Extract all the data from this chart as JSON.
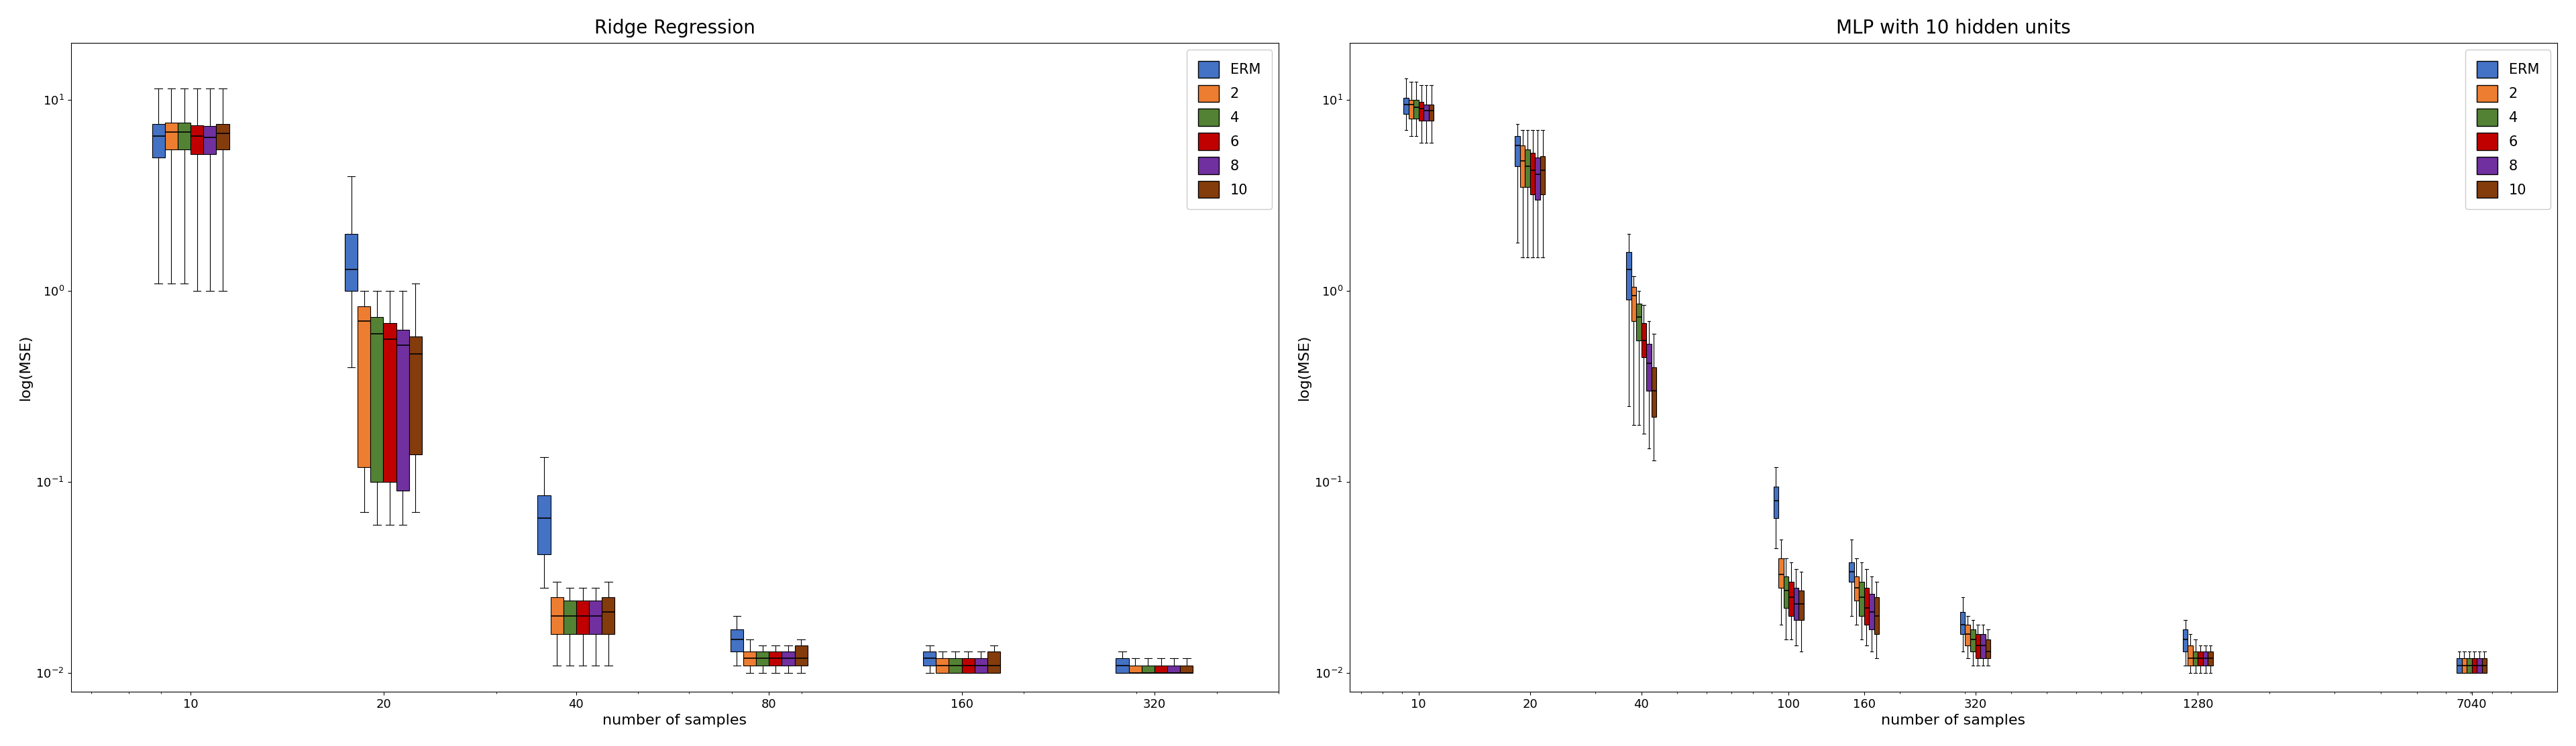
{
  "ridge": {
    "title": "Ridge Regression",
    "xlabel": "number of samples",
    "ylabel": "log(MSE)",
    "x_ticks": [
      10,
      20,
      40,
      80,
      160,
      320
    ],
    "x_labels": [
      "10",
      "20",
      "40",
      "80",
      "160",
      "320"
    ],
    "series": {
      "ERM": {
        "color": "#4472c4",
        "label": "ERM",
        "boxes": [
          {
            "q1": 5.0,
            "med": 6.5,
            "q3": 7.5,
            "whislo": 1.1,
            "whishi": 11.5
          },
          {
            "q1": 1.0,
            "med": 1.3,
            "q3": 2.0,
            "whislo": 0.4,
            "whishi": 4.0
          },
          {
            "q1": 0.042,
            "med": 0.065,
            "q3": 0.085,
            "whislo": 0.028,
            "whishi": 0.135
          },
          {
            "q1": 0.013,
            "med": 0.015,
            "q3": 0.017,
            "whislo": 0.011,
            "whishi": 0.02
          },
          {
            "q1": 0.011,
            "med": 0.012,
            "q3": 0.013,
            "whislo": 0.01,
            "whishi": 0.014
          },
          {
            "q1": 0.01,
            "med": 0.011,
            "q3": 0.012,
            "whislo": 0.01,
            "whishi": 0.013
          }
        ]
      },
      "2": {
        "color": "#ed7d31",
        "label": "2",
        "boxes": [
          {
            "q1": 5.5,
            "med": 6.8,
            "q3": 7.6,
            "whislo": 1.1,
            "whishi": 11.5
          },
          {
            "q1": 0.12,
            "med": 0.7,
            "q3": 0.83,
            "whislo": 0.07,
            "whishi": 1.0
          },
          {
            "q1": 0.016,
            "med": 0.02,
            "q3": 0.025,
            "whislo": 0.011,
            "whishi": 0.03
          },
          {
            "q1": 0.011,
            "med": 0.012,
            "q3": 0.013,
            "whislo": 0.01,
            "whishi": 0.015
          },
          {
            "q1": 0.01,
            "med": 0.011,
            "q3": 0.012,
            "whislo": 0.01,
            "whishi": 0.013
          },
          {
            "q1": 0.01,
            "med": 0.01,
            "q3": 0.011,
            "whislo": 0.01,
            "whishi": 0.012
          }
        ]
      },
      "4": {
        "color": "#548235",
        "label": "4",
        "boxes": [
          {
            "q1": 5.5,
            "med": 6.8,
            "q3": 7.6,
            "whislo": 1.1,
            "whishi": 11.5
          },
          {
            "q1": 0.1,
            "med": 0.6,
            "q3": 0.73,
            "whislo": 0.06,
            "whishi": 1.0
          },
          {
            "q1": 0.016,
            "med": 0.02,
            "q3": 0.024,
            "whislo": 0.011,
            "whishi": 0.028
          },
          {
            "q1": 0.011,
            "med": 0.012,
            "q3": 0.013,
            "whislo": 0.01,
            "whishi": 0.014
          },
          {
            "q1": 0.01,
            "med": 0.011,
            "q3": 0.012,
            "whislo": 0.01,
            "whishi": 0.013
          },
          {
            "q1": 0.01,
            "med": 0.01,
            "q3": 0.011,
            "whislo": 0.01,
            "whishi": 0.012
          }
        ]
      },
      "6": {
        "color": "#c00000",
        "label": "6",
        "boxes": [
          {
            "q1": 5.2,
            "med": 6.5,
            "q3": 7.4,
            "whislo": 1.0,
            "whishi": 11.5
          },
          {
            "q1": 0.1,
            "med": 0.56,
            "q3": 0.68,
            "whislo": 0.06,
            "whishi": 1.0
          },
          {
            "q1": 0.016,
            "med": 0.02,
            "q3": 0.024,
            "whislo": 0.011,
            "whishi": 0.028
          },
          {
            "q1": 0.011,
            "med": 0.012,
            "q3": 0.013,
            "whislo": 0.01,
            "whishi": 0.014
          },
          {
            "q1": 0.01,
            "med": 0.011,
            "q3": 0.012,
            "whislo": 0.01,
            "whishi": 0.013
          },
          {
            "q1": 0.01,
            "med": 0.01,
            "q3": 0.011,
            "whislo": 0.01,
            "whishi": 0.012
          }
        ]
      },
      "8": {
        "color": "#7030a0",
        "label": "8",
        "boxes": [
          {
            "q1": 5.2,
            "med": 6.4,
            "q3": 7.3,
            "whislo": 1.0,
            "whishi": 11.5
          },
          {
            "q1": 0.09,
            "med": 0.52,
            "q3": 0.63,
            "whislo": 0.06,
            "whishi": 1.0
          },
          {
            "q1": 0.016,
            "med": 0.02,
            "q3": 0.024,
            "whislo": 0.011,
            "whishi": 0.028
          },
          {
            "q1": 0.011,
            "med": 0.012,
            "q3": 0.013,
            "whislo": 0.01,
            "whishi": 0.014
          },
          {
            "q1": 0.01,
            "med": 0.011,
            "q3": 0.012,
            "whislo": 0.01,
            "whishi": 0.013
          },
          {
            "q1": 0.01,
            "med": 0.01,
            "q3": 0.011,
            "whislo": 0.01,
            "whishi": 0.012
          }
        ]
      },
      "10": {
        "color": "#843c0c",
        "label": "10",
        "boxes": [
          {
            "q1": 5.5,
            "med": 6.7,
            "q3": 7.5,
            "whislo": 1.0,
            "whishi": 11.5
          },
          {
            "q1": 0.14,
            "med": 0.47,
            "q3": 0.58,
            "whislo": 0.07,
            "whishi": 1.1
          },
          {
            "q1": 0.016,
            "med": 0.021,
            "q3": 0.025,
            "whislo": 0.011,
            "whishi": 0.03
          },
          {
            "q1": 0.011,
            "med": 0.012,
            "q3": 0.014,
            "whislo": 0.01,
            "whishi": 0.015
          },
          {
            "q1": 0.01,
            "med": 0.011,
            "q3": 0.013,
            "whislo": 0.01,
            "whishi": 0.014
          },
          {
            "q1": 0.01,
            "med": 0.01,
            "q3": 0.011,
            "whislo": 0.01,
            "whishi": 0.012
          }
        ]
      }
    }
  },
  "mlp": {
    "title": "MLP with 10 hidden units",
    "xlabel": "number of samples",
    "ylabel": "log(MSE)",
    "x_ticks": [
      10,
      20,
      40,
      100,
      160,
      320,
      1280,
      7040
    ],
    "x_labels": [
      "10",
      "20",
      "40",
      "100",
      "160",
      "320",
      "1280",
      "7040"
    ],
    "series": {
      "ERM": {
        "color": "#4472c4",
        "label": "ERM",
        "boxes": [
          {
            "q1": 8.5,
            "med": 9.5,
            "q3": 10.3,
            "whislo": 7.0,
            "whishi": 13.0
          },
          {
            "q1": 4.5,
            "med": 5.8,
            "q3": 6.5,
            "whislo": 1.8,
            "whishi": 7.5
          },
          {
            "q1": 0.9,
            "med": 1.3,
            "q3": 1.6,
            "whislo": 0.25,
            "whishi": 2.0
          },
          {
            "q1": 0.065,
            "med": 0.08,
            "q3": 0.095,
            "whislo": 0.045,
            "whishi": 0.12
          },
          {
            "q1": 0.03,
            "med": 0.034,
            "q3": 0.038,
            "whislo": 0.02,
            "whishi": 0.05
          },
          {
            "q1": 0.016,
            "med": 0.018,
            "q3": 0.021,
            "whislo": 0.013,
            "whishi": 0.025
          },
          {
            "q1": 0.013,
            "med": 0.015,
            "q3": 0.017,
            "whislo": 0.011,
            "whishi": 0.019
          },
          {
            "q1": 0.01,
            "med": 0.011,
            "q3": 0.012,
            "whislo": 0.01,
            "whishi": 0.013
          }
        ]
      },
      "2": {
        "color": "#ed7d31",
        "label": "2",
        "boxes": [
          {
            "q1": 8.0,
            "med": 9.5,
            "q3": 10.0,
            "whislo": 6.5,
            "whishi": 12.5
          },
          {
            "q1": 3.5,
            "med": 4.8,
            "q3": 5.8,
            "whislo": 1.5,
            "whishi": 7.0
          },
          {
            "q1": 0.7,
            "med": 0.95,
            "q3": 1.05,
            "whislo": 0.2,
            "whishi": 1.2
          },
          {
            "q1": 0.028,
            "med": 0.033,
            "q3": 0.04,
            "whislo": 0.018,
            "whishi": 0.05
          },
          {
            "q1": 0.024,
            "med": 0.028,
            "q3": 0.032,
            "whislo": 0.018,
            "whishi": 0.04
          },
          {
            "q1": 0.014,
            "med": 0.016,
            "q3": 0.018,
            "whislo": 0.012,
            "whishi": 0.02
          },
          {
            "q1": 0.011,
            "med": 0.012,
            "q3": 0.014,
            "whislo": 0.01,
            "whishi": 0.016
          },
          {
            "q1": 0.01,
            "med": 0.011,
            "q3": 0.012,
            "whislo": 0.01,
            "whishi": 0.013
          }
        ]
      },
      "4": {
        "color": "#548235",
        "label": "4",
        "boxes": [
          {
            "q1": 8.0,
            "med": 9.2,
            "q3": 10.0,
            "whislo": 6.5,
            "whishi": 12.5
          },
          {
            "q1": 3.5,
            "med": 4.5,
            "q3": 5.5,
            "whislo": 1.5,
            "whishi": 7.0
          },
          {
            "q1": 0.55,
            "med": 0.73,
            "q3": 0.86,
            "whislo": 0.2,
            "whishi": 1.0
          },
          {
            "q1": 0.022,
            "med": 0.027,
            "q3": 0.032,
            "whislo": 0.015,
            "whishi": 0.04
          },
          {
            "q1": 0.02,
            "med": 0.025,
            "q3": 0.03,
            "whislo": 0.015,
            "whishi": 0.038
          },
          {
            "q1": 0.013,
            "med": 0.015,
            "q3": 0.017,
            "whislo": 0.011,
            "whishi": 0.019
          },
          {
            "q1": 0.011,
            "med": 0.012,
            "q3": 0.013,
            "whislo": 0.01,
            "whishi": 0.015
          },
          {
            "q1": 0.01,
            "med": 0.011,
            "q3": 0.012,
            "whislo": 0.01,
            "whishi": 0.013
          }
        ]
      },
      "6": {
        "color": "#c00000",
        "label": "6",
        "boxes": [
          {
            "q1": 7.8,
            "med": 9.0,
            "q3": 9.8,
            "whislo": 6.0,
            "whishi": 12.0
          },
          {
            "q1": 3.2,
            "med": 4.3,
            "q3": 5.3,
            "whislo": 1.5,
            "whishi": 7.0
          },
          {
            "q1": 0.45,
            "med": 0.55,
            "q3": 0.68,
            "whislo": 0.18,
            "whishi": 0.85
          },
          {
            "q1": 0.02,
            "med": 0.025,
            "q3": 0.03,
            "whislo": 0.015,
            "whishi": 0.038
          },
          {
            "q1": 0.018,
            "med": 0.022,
            "q3": 0.028,
            "whislo": 0.014,
            "whishi": 0.035
          },
          {
            "q1": 0.012,
            "med": 0.014,
            "q3": 0.016,
            "whislo": 0.011,
            "whishi": 0.018
          },
          {
            "q1": 0.011,
            "med": 0.012,
            "q3": 0.013,
            "whislo": 0.01,
            "whishi": 0.014
          },
          {
            "q1": 0.01,
            "med": 0.011,
            "q3": 0.012,
            "whislo": 0.01,
            "whishi": 0.013
          }
        ]
      },
      "8": {
        "color": "#7030a0",
        "label": "8",
        "boxes": [
          {
            "q1": 7.8,
            "med": 8.8,
            "q3": 9.5,
            "whislo": 6.0,
            "whishi": 12.0
          },
          {
            "q1": 3.0,
            "med": 4.1,
            "q3": 5.0,
            "whislo": 1.5,
            "whishi": 7.0
          },
          {
            "q1": 0.3,
            "med": 0.42,
            "q3": 0.53,
            "whislo": 0.15,
            "whishi": 0.7
          },
          {
            "q1": 0.019,
            "med": 0.023,
            "q3": 0.028,
            "whislo": 0.014,
            "whishi": 0.035
          },
          {
            "q1": 0.017,
            "med": 0.021,
            "q3": 0.026,
            "whislo": 0.013,
            "whishi": 0.032
          },
          {
            "q1": 0.012,
            "med": 0.014,
            "q3": 0.016,
            "whislo": 0.011,
            "whishi": 0.018
          },
          {
            "q1": 0.011,
            "med": 0.012,
            "q3": 0.013,
            "whislo": 0.01,
            "whishi": 0.014
          },
          {
            "q1": 0.01,
            "med": 0.011,
            "q3": 0.012,
            "whislo": 0.01,
            "whishi": 0.013
          }
        ]
      },
      "10": {
        "color": "#843c0c",
        "label": "10",
        "boxes": [
          {
            "q1": 7.8,
            "med": 8.8,
            "q3": 9.5,
            "whislo": 6.0,
            "whishi": 12.0
          },
          {
            "q1": 3.2,
            "med": 4.3,
            "q3": 5.1,
            "whislo": 1.5,
            "whishi": 7.0
          },
          {
            "q1": 0.22,
            "med": 0.3,
            "q3": 0.4,
            "whislo": 0.13,
            "whishi": 0.6
          },
          {
            "q1": 0.019,
            "med": 0.023,
            "q3": 0.027,
            "whislo": 0.013,
            "whishi": 0.034
          },
          {
            "q1": 0.016,
            "med": 0.02,
            "q3": 0.025,
            "whislo": 0.012,
            "whishi": 0.03
          },
          {
            "q1": 0.012,
            "med": 0.013,
            "q3": 0.015,
            "whislo": 0.011,
            "whishi": 0.017
          },
          {
            "q1": 0.011,
            "med": 0.012,
            "q3": 0.013,
            "whislo": 0.01,
            "whishi": 0.014
          },
          {
            "q1": 0.01,
            "med": 0.011,
            "q3": 0.012,
            "whislo": 0.01,
            "whishi": 0.013
          }
        ]
      }
    }
  },
  "legend_labels": [
    "ERM",
    "2",
    "4",
    "6",
    "8",
    "10"
  ],
  "legend_colors": [
    "#4472c4",
    "#ed7d31",
    "#548235",
    "#c00000",
    "#7030a0",
    "#843c0c"
  ],
  "background_color": "#ffffff"
}
